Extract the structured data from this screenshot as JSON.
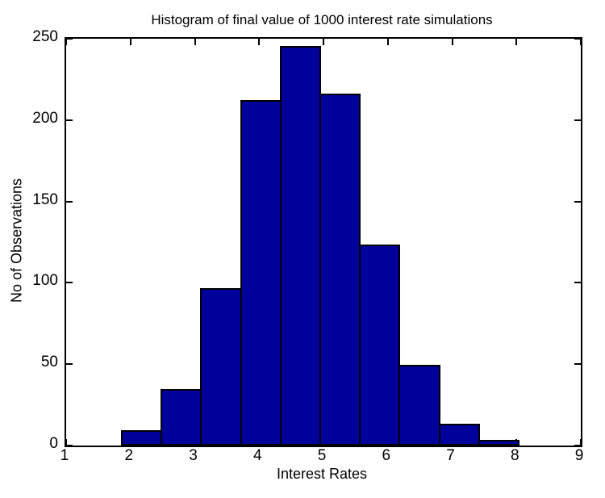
{
  "figure": {
    "title": "Histogram of final value of 1000 interest rate simulations",
    "xlabel": "Interest Rates",
    "ylabel": "No of Observations"
  },
  "chart_data": {
    "type": "bar",
    "subtype": "histogram",
    "title": "Histogram of final value of 1000 interest rate simulations",
    "xlabel": "Interest Rates",
    "ylabel": "No of Observations",
    "bin_edges": [
      1.865,
      2.482,
      3.099,
      3.716,
      4.333,
      4.95,
      5.567,
      6.184,
      6.801,
      7.418,
      8.035
    ],
    "counts": [
      9,
      34,
      96,
      212,
      245,
      216,
      123,
      49,
      13,
      3
    ],
    "x_ticks": [
      1,
      2,
      3,
      4,
      5,
      6,
      7,
      8,
      9
    ],
    "y_ticks": [
      0,
      50,
      100,
      150,
      200,
      250
    ],
    "xlim": [
      1,
      9
    ],
    "ylim": [
      0,
      250
    ],
    "grid": false,
    "legend_position": "none",
    "colors": {
      "bar_fill": "#00009B",
      "bar_edge": "#000000",
      "axis": "#000000",
      "background": "#FFFFFF",
      "text": "#000000"
    }
  }
}
